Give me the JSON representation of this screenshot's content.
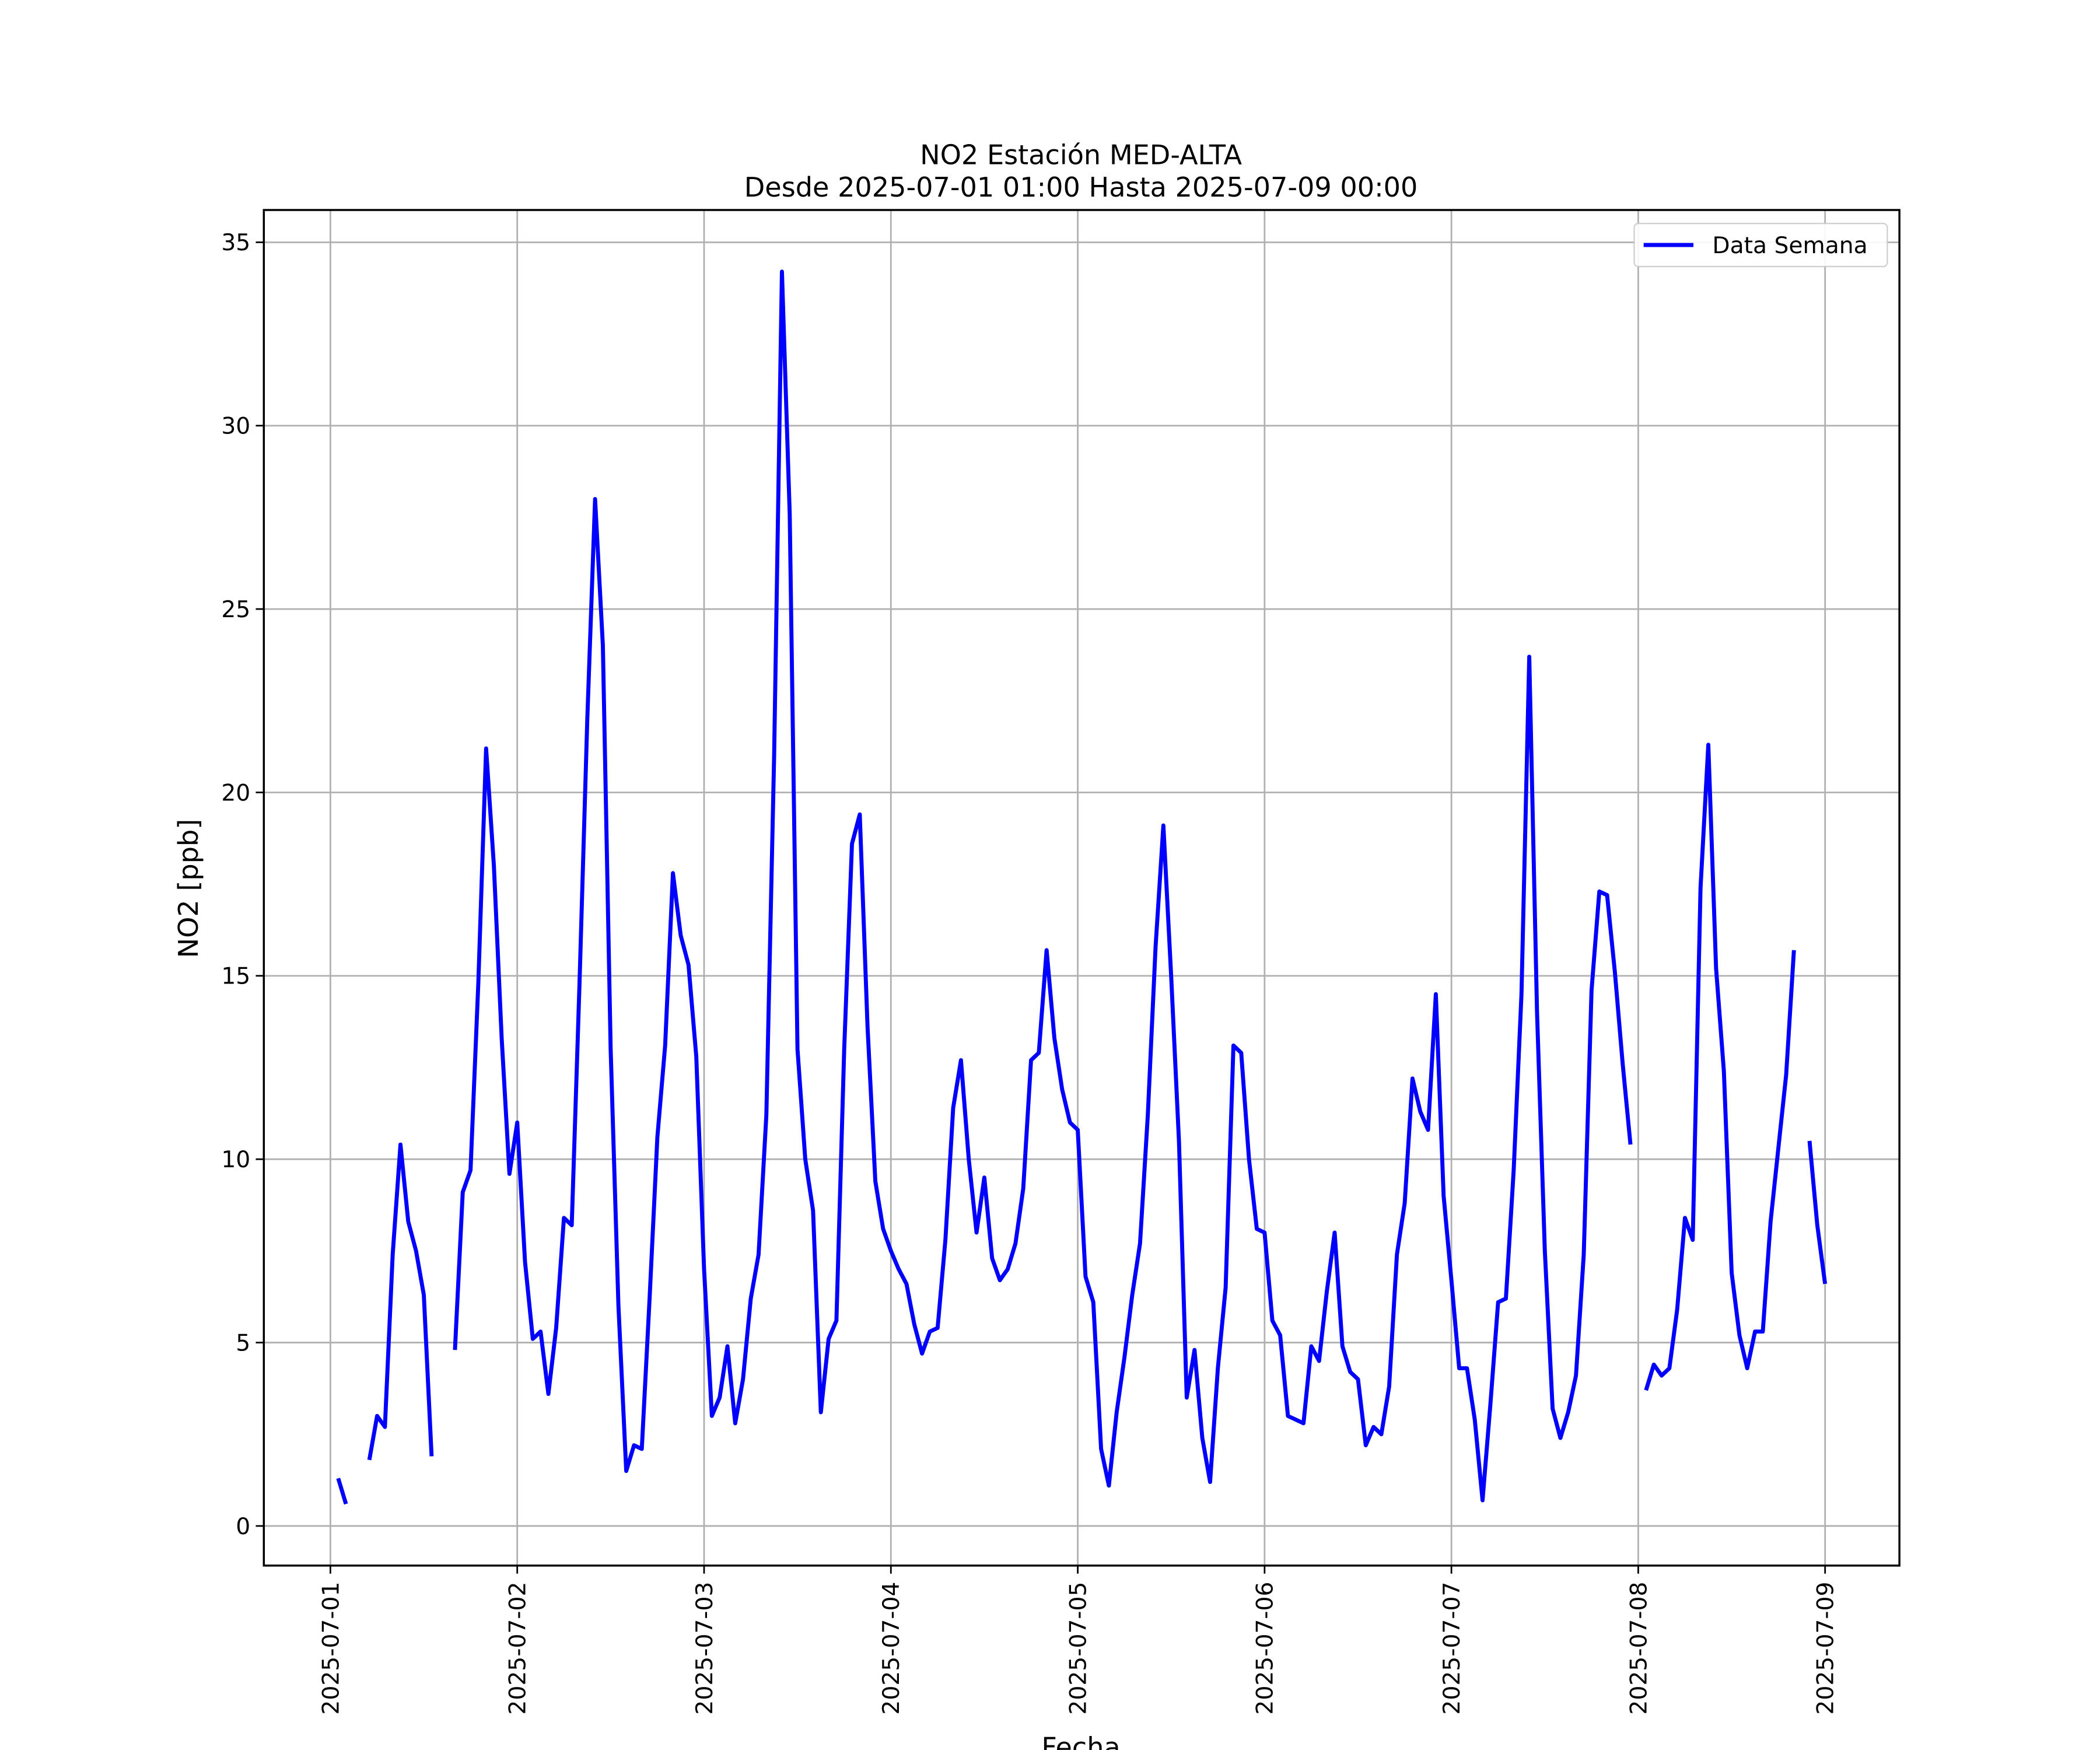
{
  "chart_data": {
    "type": "line",
    "title": "NO2 Estación MED-ALTA",
    "subtitle": "Desde 2025-07-01 01:00 Hasta 2025-07-09 00:00",
    "xlabel": "Fecha",
    "ylabel": "NO2 [ppb]",
    "x": [
      "2025-07-01 01:00",
      "2025-07-01 02:00",
      "2025-07-01 03:00",
      "2025-07-01 04:00",
      "2025-07-01 05:00",
      "2025-07-01 06:00",
      "2025-07-01 07:00",
      "2025-07-01 08:00",
      "2025-07-01 09:00",
      "2025-07-01 10:00",
      "2025-07-01 11:00",
      "2025-07-01 12:00",
      "2025-07-01 13:00",
      "2025-07-01 14:00",
      "2025-07-01 15:00",
      "2025-07-01 16:00",
      "2025-07-01 17:00",
      "2025-07-01 18:00",
      "2025-07-01 19:00",
      "2025-07-01 20:00",
      "2025-07-01 21:00",
      "2025-07-01 22:00",
      "2025-07-01 23:00",
      "2025-07-02 00:00",
      "2025-07-02 01:00",
      "2025-07-02 02:00",
      "2025-07-02 03:00",
      "2025-07-02 04:00",
      "2025-07-02 05:00",
      "2025-07-02 06:00",
      "2025-07-02 07:00",
      "2025-07-02 08:00",
      "2025-07-02 09:00",
      "2025-07-02 10:00",
      "2025-07-02 11:00",
      "2025-07-02 12:00",
      "2025-07-02 13:00",
      "2025-07-02 14:00",
      "2025-07-02 15:00",
      "2025-07-02 16:00",
      "2025-07-02 17:00",
      "2025-07-02 18:00",
      "2025-07-02 19:00",
      "2025-07-02 20:00",
      "2025-07-02 21:00",
      "2025-07-02 22:00",
      "2025-07-02 23:00",
      "2025-07-03 00:00",
      "2025-07-03 01:00",
      "2025-07-03 02:00",
      "2025-07-03 03:00",
      "2025-07-03 04:00",
      "2025-07-03 05:00",
      "2025-07-03 06:00",
      "2025-07-03 07:00",
      "2025-07-03 08:00",
      "2025-07-03 09:00",
      "2025-07-03 10:00",
      "2025-07-03 11:00",
      "2025-07-03 12:00",
      "2025-07-03 13:00",
      "2025-07-03 14:00",
      "2025-07-03 15:00",
      "2025-07-03 16:00",
      "2025-07-03 17:00",
      "2025-07-03 18:00",
      "2025-07-03 19:00",
      "2025-07-03 20:00",
      "2025-07-03 21:00",
      "2025-07-03 22:00",
      "2025-07-03 23:00",
      "2025-07-04 00:00",
      "2025-07-04 01:00",
      "2025-07-04 02:00",
      "2025-07-04 03:00",
      "2025-07-04 04:00",
      "2025-07-04 05:00",
      "2025-07-04 06:00",
      "2025-07-04 07:00",
      "2025-07-04 08:00",
      "2025-07-04 09:00",
      "2025-07-04 10:00",
      "2025-07-04 11:00",
      "2025-07-04 12:00",
      "2025-07-04 13:00",
      "2025-07-04 14:00",
      "2025-07-04 15:00",
      "2025-07-04 16:00",
      "2025-07-04 17:00",
      "2025-07-04 18:00",
      "2025-07-04 19:00",
      "2025-07-04 20:00",
      "2025-07-04 21:00",
      "2025-07-04 22:00",
      "2025-07-04 23:00",
      "2025-07-05 00:00",
      "2025-07-05 01:00",
      "2025-07-05 02:00",
      "2025-07-05 03:00",
      "2025-07-05 04:00",
      "2025-07-05 05:00",
      "2025-07-05 06:00",
      "2025-07-05 07:00",
      "2025-07-05 08:00",
      "2025-07-05 09:00",
      "2025-07-05 10:00",
      "2025-07-05 11:00",
      "2025-07-05 12:00",
      "2025-07-05 13:00",
      "2025-07-05 14:00",
      "2025-07-05 15:00",
      "2025-07-05 16:00",
      "2025-07-05 17:00",
      "2025-07-05 18:00",
      "2025-07-05 19:00",
      "2025-07-05 20:00",
      "2025-07-05 21:00",
      "2025-07-05 22:00",
      "2025-07-05 23:00",
      "2025-07-06 00:00",
      "2025-07-06 01:00",
      "2025-07-06 02:00",
      "2025-07-06 03:00",
      "2025-07-06 04:00",
      "2025-07-06 05:00",
      "2025-07-06 06:00",
      "2025-07-06 07:00",
      "2025-07-06 08:00",
      "2025-07-06 09:00",
      "2025-07-06 10:00",
      "2025-07-06 11:00",
      "2025-07-06 12:00",
      "2025-07-06 13:00",
      "2025-07-06 14:00",
      "2025-07-06 15:00",
      "2025-07-06 16:00",
      "2025-07-06 17:00",
      "2025-07-06 18:00",
      "2025-07-06 19:00",
      "2025-07-06 20:00",
      "2025-07-06 21:00",
      "2025-07-06 22:00",
      "2025-07-06 23:00",
      "2025-07-07 00:00",
      "2025-07-07 01:00",
      "2025-07-07 02:00",
      "2025-07-07 03:00",
      "2025-07-07 04:00",
      "2025-07-07 05:00",
      "2025-07-07 06:00",
      "2025-07-07 07:00",
      "2025-07-07 08:00",
      "2025-07-07 09:00",
      "2025-07-07 10:00",
      "2025-07-07 11:00",
      "2025-07-07 12:00",
      "2025-07-07 13:00",
      "2025-07-07 14:00",
      "2025-07-07 15:00",
      "2025-07-07 16:00",
      "2025-07-07 17:00",
      "2025-07-07 18:00",
      "2025-07-07 19:00",
      "2025-07-07 20:00",
      "2025-07-07 21:00",
      "2025-07-07 22:00",
      "2025-07-07 23:00",
      "2025-07-08 00:00",
      "2025-07-08 01:00",
      "2025-07-08 02:00",
      "2025-07-08 03:00",
      "2025-07-08 04:00",
      "2025-07-08 05:00",
      "2025-07-08 06:00",
      "2025-07-08 07:00",
      "2025-07-08 08:00",
      "2025-07-08 09:00",
      "2025-07-08 10:00",
      "2025-07-08 11:00",
      "2025-07-08 12:00",
      "2025-07-08 13:00",
      "2025-07-08 14:00",
      "2025-07-08 15:00",
      "2025-07-08 16:00",
      "2025-07-08 17:00",
      "2025-07-08 18:00",
      "2025-07-08 19:00",
      "2025-07-08 20:00",
      "2025-07-08 21:00",
      "2025-07-08 22:00",
      "2025-07-08 23:00",
      "2025-07-09 00:00"
    ],
    "series": [
      {
        "name": "Data Semana",
        "color": "#0000ff",
        "values": [
          1.3,
          0.6,
          null,
          null,
          1.8,
          3.0,
          2.7,
          7.4,
          10.4,
          8.3,
          7.5,
          6.3,
          1.9,
          null,
          null,
          4.8,
          9.1,
          9.7,
          14.8,
          21.2,
          18.0,
          13.3,
          9.6,
          11.0,
          7.2,
          5.1,
          5.3,
          3.6,
          5.4,
          8.4,
          8.2,
          14.8,
          22.0,
          28.0,
          24.0,
          13.0,
          6.0,
          1.5,
          2.2,
          2.1,
          6.2,
          10.6,
          13.1,
          17.8,
          16.1,
          15.3,
          12.8,
          7.0,
          3.0,
          3.5,
          4.9,
          2.8,
          4.0,
          6.2,
          7.4,
          11.2,
          21.0,
          34.2,
          27.6,
          13.0,
          10.0,
          8.6,
          3.1,
          5.1,
          5.6,
          13.0,
          18.6,
          19.4,
          13.6,
          9.4,
          8.1,
          7.5,
          7.0,
          6.6,
          5.5,
          4.7,
          5.3,
          5.4,
          7.8,
          11.4,
          12.7,
          10.0,
          8.0,
          9.5,
          7.3,
          6.7,
          7.0,
          7.7,
          9.2,
          12.7,
          12.9,
          15.7,
          13.3,
          11.9,
          11.0,
          10.8,
          6.8,
          6.1,
          2.1,
          1.1,
          3.1,
          4.6,
          6.3,
          7.7,
          11.2,
          15.8,
          19.1,
          15.0,
          10.5,
          3.5,
          4.8,
          2.4,
          1.2,
          4.3,
          6.5,
          13.1,
          12.9,
          10.0,
          8.1,
          8.0,
          5.6,
          5.2,
          3.0,
          2.9,
          2.8,
          4.9,
          4.5,
          6.4,
          8.0,
          4.9,
          4.2,
          4.0,
          2.2,
          2.7,
          2.5,
          3.8,
          7.4,
          8.8,
          12.2,
          11.3,
          10.8,
          14.5,
          9.0,
          6.7,
          4.3,
          4.3,
          2.9,
          0.7,
          3.3,
          6.1,
          6.2,
          9.7,
          14.5,
          23.7,
          14.0,
          7.5,
          3.2,
          2.4,
          3.1,
          4.1,
          7.4,
          14.6,
          17.3,
          17.2,
          15.1,
          12.6,
          10.4,
          null,
          3.7,
          4.4,
          4.1,
          4.3,
          5.9,
          8.4,
          7.8,
          17.4,
          21.3,
          15.2,
          12.4,
          6.9,
          5.2,
          4.3,
          5.3,
          5.3,
          8.3,
          10.3,
          12.3,
          15.7,
          null,
          10.5,
          8.2,
          6.6
        ]
      }
    ],
    "xlim": [
      "2025-06-30 15:27",
      "2025-07-09 09:33"
    ],
    "xticks": [
      "2025-07-01",
      "2025-07-02",
      "2025-07-03",
      "2025-07-04",
      "2025-07-05",
      "2025-07-06",
      "2025-07-07",
      "2025-07-08",
      "2025-07-09"
    ],
    "ylim": [
      -1.08,
      35.88
    ],
    "yticks": [
      0,
      5,
      10,
      15,
      20,
      25,
      30,
      35
    ],
    "grid": true,
    "legend": "upper right"
  }
}
